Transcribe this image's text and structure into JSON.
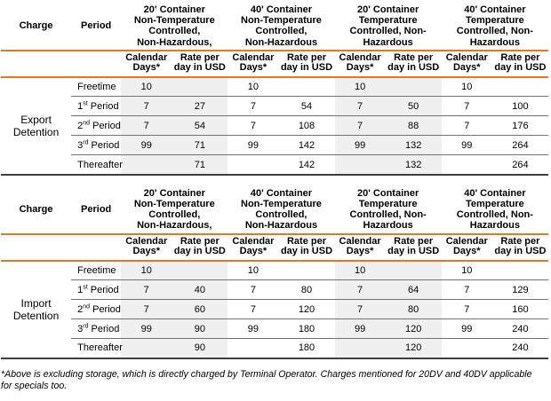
{
  "styles": {
    "accent_orange": "#E87722",
    "column_shade": "#F0F0F0",
    "row_line": "#737373",
    "table_edge": "#3F3F3F"
  },
  "header": {
    "charge_label": "Charge",
    "period_label": "Period",
    "groups": [
      {
        "shaded": true,
        "lines": [
          "20' Container",
          "Non-Temperature",
          "Controlled,",
          "Non-Hazardous,"
        ]
      },
      {
        "shaded": false,
        "lines": [
          "40' Container",
          "Non-Temperature",
          "Controlled,",
          "Non-Hazardous"
        ]
      },
      {
        "shaded": true,
        "lines": [
          "20' Container",
          "Temperature",
          "Controlled, Non-",
          "Hazardous"
        ]
      },
      {
        "shaded": false,
        "lines": [
          "40' Container",
          "Temperature",
          "Controlled, Non-",
          "Hazardous"
        ]
      }
    ],
    "sub_days": [
      "Calendar",
      "Days*"
    ],
    "sub_rate": [
      "Rate per",
      "day in USD"
    ]
  },
  "tables": [
    {
      "charge": "Export Detention",
      "rows": [
        {
          "period": {
            "base": "Freetime",
            "sup": "",
            "rest": ""
          },
          "values": [
            "10",
            "",
            "10",
            "",
            "10",
            "",
            "10",
            ""
          ]
        },
        {
          "period": {
            "base": "1",
            "sup": "st",
            "rest": " Period"
          },
          "values": [
            "7",
            "27",
            "7",
            "54",
            "7",
            "50",
            "7",
            "100"
          ]
        },
        {
          "period": {
            "base": "2",
            "sup": "nd",
            "rest": " Period"
          },
          "values": [
            "7",
            "54",
            "7",
            "108",
            "7",
            "88",
            "7",
            "176"
          ]
        },
        {
          "period": {
            "base": "3",
            "sup": "rd",
            "rest": " Period"
          },
          "values": [
            "99",
            "71",
            "99",
            "142",
            "99",
            "132",
            "99",
            "264"
          ]
        },
        {
          "period": {
            "base": "Thereafter",
            "sup": "",
            "rest": ""
          },
          "values": [
            "",
            "71",
            "",
            "142",
            "",
            "132",
            "",
            "264"
          ]
        }
      ]
    },
    {
      "charge": "Import Detention",
      "rows": [
        {
          "period": {
            "base": "Freetime",
            "sup": "",
            "rest": ""
          },
          "values": [
            "10",
            "",
            "10",
            "",
            "10",
            "",
            "10",
            ""
          ]
        },
        {
          "period": {
            "base": "1",
            "sup": "st",
            "rest": " Period"
          },
          "values": [
            "7",
            "40",
            "7",
            "80",
            "7",
            "64",
            "7",
            "129"
          ]
        },
        {
          "period": {
            "base": "2",
            "sup": "nd",
            "rest": " Period"
          },
          "values": [
            "7",
            "60",
            "7",
            "120",
            "7",
            "80",
            "7",
            "160"
          ]
        },
        {
          "period": {
            "base": "3",
            "sup": "rd",
            "rest": " Period"
          },
          "values": [
            "99",
            "90",
            "99",
            "180",
            "99",
            "120",
            "99",
            "240"
          ]
        },
        {
          "period": {
            "base": "Thereafter",
            "sup": "",
            "rest": ""
          },
          "values": [
            "",
            "90",
            "",
            "180",
            "",
            "120",
            "",
            "240"
          ]
        }
      ]
    }
  ],
  "footnote": "*Above is excluding storage, which is directly charged by Terminal Operator. Charges mentioned for 20DV and 40DV applicable for specials too."
}
